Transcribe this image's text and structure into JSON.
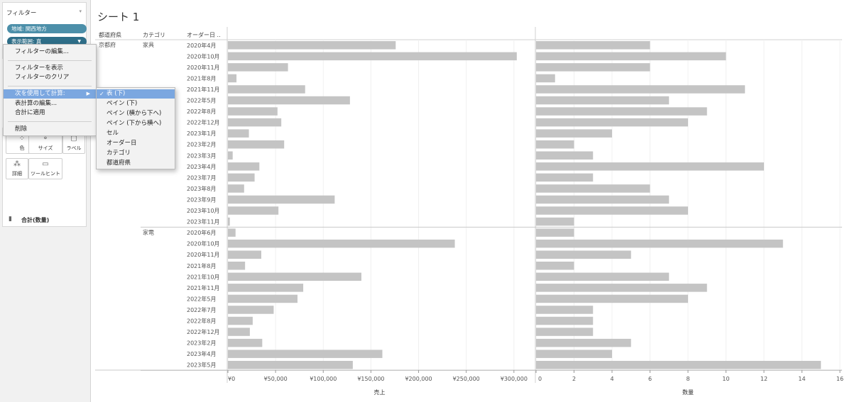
{
  "filter_card": {
    "title": "フィルター",
    "pills": [
      {
        "label": "地域: 関西地方"
      },
      {
        "label": "表示範囲: 真"
      }
    ]
  },
  "marks_card": {
    "buttons": [
      {
        "label": "色",
        "icon": "color-dots-icon"
      },
      {
        "label": "サイズ",
        "icon": "size-icon"
      },
      {
        "label": "ラベル",
        "icon": "label-icon"
      },
      {
        "label": "詳細",
        "icon": "detail-icon"
      },
      {
        "label": "ツールヒント",
        "icon": "tooltip-icon"
      }
    ],
    "sum_label": "合計(数量)"
  },
  "context_menu": {
    "items": [
      "フィルターの編集...",
      "フィルターを表示",
      "フィルターのクリア",
      "次を使用して計算:",
      "表計算の編集...",
      "合計に適用",
      "削除"
    ],
    "submenu": [
      "表 (下)",
      "ペイン (下)",
      "ペイン (横から下へ)",
      "ペイン (下から横へ)",
      "セル",
      "オーダー日",
      "カテゴリ",
      "都道府県"
    ]
  },
  "sheet": {
    "title": "シート 1",
    "column_headers": [
      "都道府県",
      "カテゴリ",
      "オーダー日 .."
    ]
  },
  "chart_data": {
    "type": "bar",
    "orientation": "horizontal",
    "prefecture": "京都府",
    "groups": [
      {
        "category": "家具",
        "rows": [
          "2020年4月",
          "2020年10月",
          "2020年11月",
          "2021年8月",
          "2021年11月",
          "2022年5月",
          "2022年8月",
          "2022年12月",
          "2023年1月",
          "2023年2月",
          "2023年3月",
          "2023年4月",
          "2023年7月",
          "2023年8月",
          "2023年9月",
          "2023年10月",
          "2023年11月"
        ],
        "sales": [
          176000,
          303000,
          63000,
          9000,
          81000,
          128000,
          52000,
          56000,
          22000,
          59000,
          5000,
          33000,
          28000,
          17000,
          112000,
          53000,
          2000
        ],
        "quantity": [
          6,
          10,
          6,
          1,
          11,
          7,
          9,
          8,
          4,
          2,
          3,
          12,
          3,
          6,
          7,
          8,
          2
        ]
      },
      {
        "category": "家電",
        "rows": [
          "2020年6月",
          "2020年10月",
          "2020年11月",
          "2021年8月",
          "2021年10月",
          "2021年11月",
          "2022年5月",
          "2022年7月",
          "2022年8月",
          "2022年12月",
          "2023年2月",
          "2023年4月",
          "2023年5月"
        ],
        "sales": [
          8000,
          238000,
          35000,
          18000,
          140000,
          79000,
          73000,
          48000,
          26000,
          23000,
          36000,
          162000,
          131000
        ],
        "quantity": [
          2,
          13,
          5,
          2,
          7,
          9,
          8,
          3,
          3,
          3,
          5,
          4,
          15
        ]
      }
    ],
    "sales_axis": {
      "title": "売上",
      "ticks": [
        "¥0",
        "¥50,000",
        "¥100,000",
        "¥150,000",
        "¥200,000",
        "¥250,000",
        "¥300,000"
      ],
      "range": [
        0,
        318000
      ]
    },
    "quantity_axis": {
      "title": "数量",
      "ticks": [
        "0",
        "2",
        "4",
        "6",
        "8",
        "10",
        "12",
        "14",
        "16"
      ],
      "range": [
        0,
        16
      ]
    },
    "bar_color": "#c4c4c4"
  }
}
